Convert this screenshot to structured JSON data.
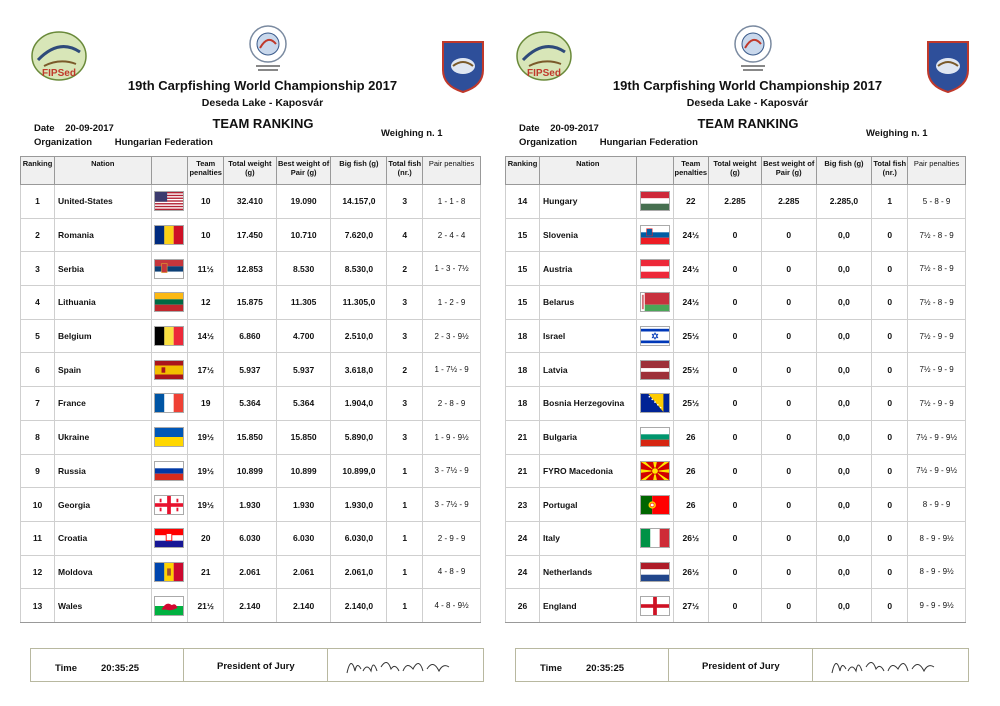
{
  "header": {
    "logo_left_text": "FIPSed",
    "title": "19th Carpfishing World Championship 2017",
    "subtitle": "Deseda Lake - Kaposvár",
    "ranking_title": "TEAM RANKING",
    "date_label": "Date",
    "date_value": "20-09-2017",
    "org_label": "Organization",
    "org_value": "Hungarian Federation",
    "weighing": "Weighing n. 1"
  },
  "columns": [
    "Ranking",
    "Nation",
    "",
    "Team penalties",
    "Total weight (g)",
    "Best weight of Pair (g)",
    "Big fish (g)",
    "Total fish (nr.)",
    "Pair penalties"
  ],
  "left_rows": [
    {
      "rank": "1",
      "nation": "United-States",
      "flag": "usa",
      "team_pen": "10",
      "total": "32.410",
      "best_pair": "19.090",
      "big_fish": "14.157,0",
      "fish": "3",
      "pair_pen": "1 - 1 - 8"
    },
    {
      "rank": "2",
      "nation": "Romania",
      "flag": "romania",
      "team_pen": "10",
      "total": "17.450",
      "best_pair": "10.710",
      "big_fish": "7.620,0",
      "fish": "4",
      "pair_pen": "2 - 4 - 4"
    },
    {
      "rank": "3",
      "nation": "Serbia",
      "flag": "serbia",
      "team_pen": "11½",
      "total": "12.853",
      "best_pair": "8.530",
      "big_fish": "8.530,0",
      "fish": "2",
      "pair_pen": "1 - 3 - 7½"
    },
    {
      "rank": "4",
      "nation": "Lithuania",
      "flag": "lithuania",
      "team_pen": "12",
      "total": "15.875",
      "best_pair": "11.305",
      "big_fish": "11.305,0",
      "fish": "3",
      "pair_pen": "1 - 2 - 9"
    },
    {
      "rank": "5",
      "nation": "Belgium",
      "flag": "belgium",
      "team_pen": "14½",
      "total": "6.860",
      "best_pair": "4.700",
      "big_fish": "2.510,0",
      "fish": "3",
      "pair_pen": "2 - 3 - 9½"
    },
    {
      "rank": "6",
      "nation": "Spain",
      "flag": "spain",
      "team_pen": "17½",
      "total": "5.937",
      "best_pair": "5.937",
      "big_fish": "3.618,0",
      "fish": "2",
      "pair_pen": "1 - 7½ - 9"
    },
    {
      "rank": "7",
      "nation": "France",
      "flag": "france",
      "team_pen": "19",
      "total": "5.364",
      "best_pair": "5.364",
      "big_fish": "1.904,0",
      "fish": "3",
      "pair_pen": "2 - 8 - 9"
    },
    {
      "rank": "8",
      "nation": "Ukraine",
      "flag": "ukraine",
      "team_pen": "19½",
      "total": "15.850",
      "best_pair": "15.850",
      "big_fish": "5.890,0",
      "fish": "3",
      "pair_pen": "1 - 9 - 9½"
    },
    {
      "rank": "9",
      "nation": "Russia",
      "flag": "russia",
      "team_pen": "19½",
      "total": "10.899",
      "best_pair": "10.899",
      "big_fish": "10.899,0",
      "fish": "1",
      "pair_pen": "3 - 7½ - 9"
    },
    {
      "rank": "10",
      "nation": "Georgia",
      "flag": "georgia",
      "team_pen": "19½",
      "total": "1.930",
      "best_pair": "1.930",
      "big_fish": "1.930,0",
      "fish": "1",
      "pair_pen": "3 - 7½ - 9"
    },
    {
      "rank": "11",
      "nation": "Croatia",
      "flag": "croatia",
      "team_pen": "20",
      "total": "6.030",
      "best_pair": "6.030",
      "big_fish": "6.030,0",
      "fish": "1",
      "pair_pen": "2 - 9 - 9"
    },
    {
      "rank": "12",
      "nation": "Moldova",
      "flag": "moldova",
      "team_pen": "21",
      "total": "2.061",
      "best_pair": "2.061",
      "big_fish": "2.061,0",
      "fish": "1",
      "pair_pen": "4 - 8 - 9"
    },
    {
      "rank": "13",
      "nation": "Wales",
      "flag": "wales",
      "team_pen": "21½",
      "total": "2.140",
      "best_pair": "2.140",
      "big_fish": "2.140,0",
      "fish": "1",
      "pair_pen": "4 - 8 - 9½"
    }
  ],
  "right_rows": [
    {
      "rank": "14",
      "nation": "Hungary",
      "flag": "hungary",
      "team_pen": "22",
      "total": "2.285",
      "best_pair": "2.285",
      "big_fish": "2.285,0",
      "fish": "1",
      "pair_pen": "5 - 8 - 9"
    },
    {
      "rank": "15",
      "nation": "Slovenia",
      "flag": "slovenia",
      "team_pen": "24½",
      "total": "0",
      "best_pair": "0",
      "big_fish": "0,0",
      "fish": "0",
      "pair_pen": "7½ - 8 - 9"
    },
    {
      "rank": "15",
      "nation": "Austria",
      "flag": "austria",
      "team_pen": "24½",
      "total": "0",
      "best_pair": "0",
      "big_fish": "0,0",
      "fish": "0",
      "pair_pen": "7½ - 8 - 9"
    },
    {
      "rank": "15",
      "nation": "Belarus",
      "flag": "belarus",
      "team_pen": "24½",
      "total": "0",
      "best_pair": "0",
      "big_fish": "0,0",
      "fish": "0",
      "pair_pen": "7½ - 8 - 9"
    },
    {
      "rank": "18",
      "nation": "Israel",
      "flag": "israel",
      "team_pen": "25½",
      "total": "0",
      "best_pair": "0",
      "big_fish": "0,0",
      "fish": "0",
      "pair_pen": "7½ - 9 - 9"
    },
    {
      "rank": "18",
      "nation": "Latvia",
      "flag": "latvia",
      "team_pen": "25½",
      "total": "0",
      "best_pair": "0",
      "big_fish": "0,0",
      "fish": "0",
      "pair_pen": "7½ - 9 - 9"
    },
    {
      "rank": "18",
      "nation": "Bosnia Herzegovina",
      "flag": "bosnia",
      "team_pen": "25½",
      "total": "0",
      "best_pair": "0",
      "big_fish": "0,0",
      "fish": "0",
      "pair_pen": "7½ - 9 - 9"
    },
    {
      "rank": "21",
      "nation": "Bulgaria",
      "flag": "bulgaria",
      "team_pen": "26",
      "total": "0",
      "best_pair": "0",
      "big_fish": "0,0",
      "fish": "0",
      "pair_pen": "7½ - 9 - 9½"
    },
    {
      "rank": "21",
      "nation": "FYRO Macedonia",
      "flag": "macedonia",
      "team_pen": "26",
      "total": "0",
      "best_pair": "0",
      "big_fish": "0,0",
      "fish": "0",
      "pair_pen": "7½ - 9 - 9½"
    },
    {
      "rank": "23",
      "nation": "Portugal",
      "flag": "portugal",
      "team_pen": "26",
      "total": "0",
      "best_pair": "0",
      "big_fish": "0,0",
      "fish": "0",
      "pair_pen": "8 - 9 - 9"
    },
    {
      "rank": "24",
      "nation": "Italy",
      "flag": "italy",
      "team_pen": "26½",
      "total": "0",
      "best_pair": "0",
      "big_fish": "0,0",
      "fish": "0",
      "pair_pen": "8 - 9 - 9½"
    },
    {
      "rank": "24",
      "nation": "Netherlands",
      "flag": "netherlands",
      "team_pen": "26½",
      "total": "0",
      "best_pair": "0",
      "big_fish": "0,0",
      "fish": "0",
      "pair_pen": "8 - 9 - 9½"
    },
    {
      "rank": "26",
      "nation": "England",
      "flag": "england",
      "team_pen": "27½",
      "total": "0",
      "best_pair": "0",
      "big_fish": "0,0",
      "fish": "0",
      "pair_pen": "9 - 9 - 9½"
    }
  ],
  "footer": {
    "time_label": "Time",
    "time_value": "20:35:25",
    "jury_label": "President of Jury"
  }
}
